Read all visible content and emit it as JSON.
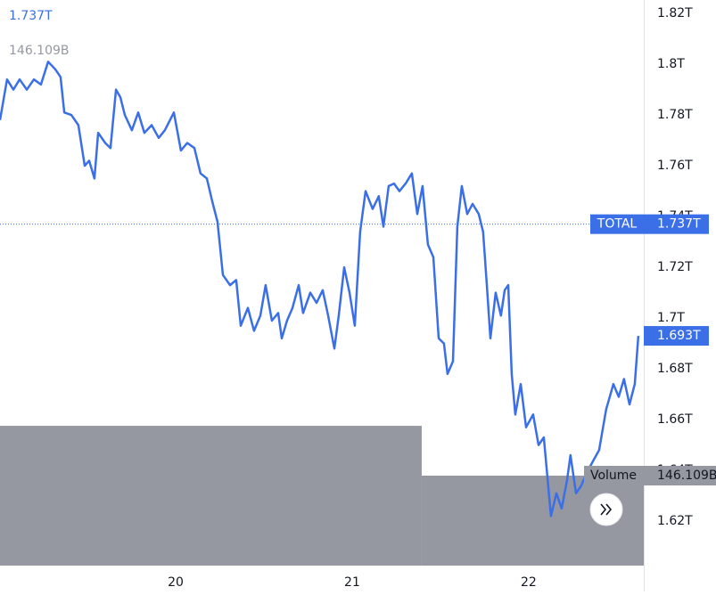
{
  "chart_data": {
    "type": "line",
    "xlim": [
      19.005,
      22.652
    ],
    "xticks": [
      20,
      21,
      22
    ],
    "ylim": [
      1.6025,
      1.8253
    ],
    "yticks": [
      {
        "value": 1.82,
        "label": "1.82T"
      },
      {
        "value": 1.8,
        "label": "1.8T"
      },
      {
        "value": 1.78,
        "label": "1.78T"
      },
      {
        "value": 1.76,
        "label": "1.76T"
      },
      {
        "value": 1.74,
        "label": "1.74T"
      },
      {
        "value": 1.72,
        "label": "1.72T"
      },
      {
        "value": 1.7,
        "label": "1.7T"
      },
      {
        "value": 1.68,
        "label": "1.68T"
      },
      {
        "value": 1.66,
        "label": "1.66T"
      },
      {
        "value": 1.64,
        "label": "1.64T"
      },
      {
        "value": 1.62,
        "label": "1.62T"
      }
    ],
    "y2lim": [
      0,
      918.6
    ],
    "grid": false,
    "series": [
      {
        "name": "TOTAL",
        "color": "#3a6fe8",
        "current": {
          "value": 1.737,
          "label": "1.737T"
        },
        "last": {
          "value": 1.693,
          "label": "1.693T"
        },
        "x": [
          19.005,
          19.045,
          19.081,
          19.116,
          19.157,
          19.197,
          19.237,
          19.278,
          19.318,
          19.348,
          19.369,
          19.409,
          19.449,
          19.485,
          19.51,
          19.54,
          19.561,
          19.601,
          19.631,
          19.662,
          19.687,
          19.712,
          19.752,
          19.788,
          19.823,
          19.864,
          19.904,
          19.939,
          19.99,
          20.03,
          20.066,
          20.106,
          20.141,
          20.177,
          20.207,
          20.237,
          20.268,
          20.308,
          20.343,
          20.369,
          20.409,
          20.444,
          20.48,
          20.51,
          20.545,
          20.581,
          20.601,
          20.631,
          20.662,
          20.697,
          20.722,
          20.763,
          20.798,
          20.833,
          20.864,
          20.899,
          20.924,
          20.955,
          20.985,
          21.015,
          21.045,
          21.076,
          21.116,
          21.151,
          21.177,
          21.207,
          21.237,
          21.268,
          21.303,
          21.338,
          21.369,
          21.399,
          21.429,
          21.46,
          21.49,
          21.52,
          21.54,
          21.571,
          21.596,
          21.621,
          21.652,
          21.682,
          21.717,
          21.742,
          21.763,
          21.783,
          21.813,
          21.843,
          21.864,
          21.884,
          21.904,
          21.924,
          21.955,
          21.985,
          22.025,
          22.056,
          22.086,
          22.126,
          22.157,
          22.187,
          22.217,
          22.237,
          22.268,
          22.298,
          22.328,
          22.359,
          22.399,
          22.439,
          22.48,
          22.51,
          22.54,
          22.571,
          22.601,
          22.621
        ],
        "values": [
          1.778,
          1.794,
          1.79,
          1.794,
          1.79,
          1.794,
          1.792,
          1.801,
          1.798,
          1.795,
          1.781,
          1.78,
          1.776,
          1.76,
          1.762,
          1.755,
          1.773,
          1.769,
          1.767,
          1.79,
          1.787,
          1.78,
          1.774,
          1.781,
          1.773,
          1.776,
          1.771,
          1.774,
          1.781,
          1.766,
          1.769,
          1.767,
          1.757,
          1.755,
          1.746,
          1.738,
          1.717,
          1.713,
          1.715,
          1.697,
          1.704,
          1.695,
          1.701,
          1.713,
          1.699,
          1.702,
          1.692,
          1.699,
          1.704,
          1.713,
          1.702,
          1.71,
          1.706,
          1.711,
          1.701,
          1.688,
          1.701,
          1.72,
          1.71,
          1.697,
          1.734,
          1.75,
          1.743,
          1.748,
          1.736,
          1.752,
          1.753,
          1.75,
          1.753,
          1.757,
          1.741,
          1.752,
          1.729,
          1.724,
          1.692,
          1.69,
          1.678,
          1.683,
          1.736,
          1.752,
          1.741,
          1.745,
          1.741,
          1.734,
          1.713,
          1.692,
          1.71,
          1.701,
          1.711,
          1.713,
          1.678,
          1.662,
          1.674,
          1.657,
          1.662,
          1.65,
          1.653,
          1.622,
          1.631,
          1.625,
          1.636,
          1.646,
          1.631,
          1.634,
          1.639,
          1.643,
          1.648,
          1.664,
          1.674,
          1.669,
          1.676,
          1.666,
          1.674,
          1.693
        ]
      },
      {
        "name": "Volume",
        "color": "#9598a1",
        "axis": "y2",
        "current": {
          "value": 146.109,
          "label": "146.109B"
        },
        "bins": [
          19.005,
          21.394,
          22.652
        ],
        "values": [
          227,
          146.109
        ]
      }
    ]
  }
}
